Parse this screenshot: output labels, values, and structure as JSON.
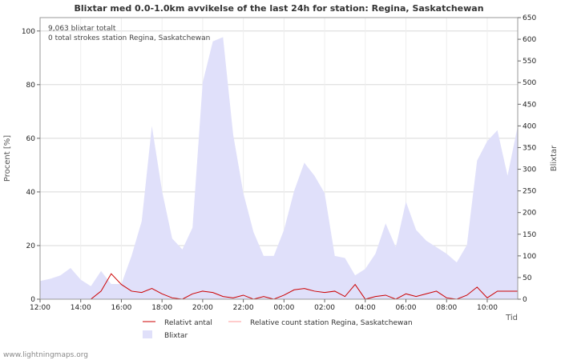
{
  "chart_data": {
    "type": "area",
    "title": "Blixtar med 0.0-1.0km avvikelse of the last 24h for station: Regina, Saskatchewan",
    "ylabel_left": "Procent   [%]",
    "ylabel_right": "Blixtar",
    "xlabel": "Tid",
    "ylim_left": [
      0,
      105
    ],
    "ylim_right": [
      0,
      650
    ],
    "left_ticks": [
      0,
      20,
      40,
      60,
      80,
      100
    ],
    "right_ticks": [
      0,
      50,
      100,
      150,
      200,
      250,
      300,
      350,
      400,
      450,
      500,
      550,
      600,
      650
    ],
    "x_tick_labels": [
      "12:00",
      "14:00",
      "16:00",
      "18:00",
      "20:00",
      "22:00",
      "00:00",
      "02:00",
      "04:00",
      "06:00",
      "08:00",
      "10:00"
    ],
    "x_tick_hours": [
      0,
      2,
      4,
      6,
      8,
      10,
      12,
      14,
      16,
      18,
      20,
      22
    ],
    "x_range_hours": [
      0,
      23.5
    ],
    "grid": true,
    "annotations": [
      "9,063 blixtar totalt",
      "0 total strokes station Regina, Saskatchewan"
    ],
    "legend": {
      "relative": "Relativt antal",
      "relative_station": "Relative count station Regina, Saskatchewan",
      "blixtar": "Blixtar"
    },
    "series": [
      {
        "name": "Blixtar",
        "axis": "right",
        "color": "#e0e0fa",
        "x": [
          0,
          0.5,
          1,
          1.5,
          2,
          2.5,
          3,
          3.5,
          4,
          4.5,
          5,
          5.5,
          6,
          6.5,
          7,
          7.5,
          8,
          8.5,
          9,
          9.5,
          10,
          10.5,
          11,
          11.5,
          12,
          12.5,
          13,
          13.5,
          14,
          14.5,
          15,
          15.5,
          16,
          16.5,
          17,
          17.5,
          18,
          18.5,
          19,
          19.5,
          20,
          20.5,
          21,
          21.5,
          22,
          22.5,
          23,
          23.5
        ],
        "values": [
          42,
          47,
          55,
          72,
          45,
          30,
          65,
          35,
          35,
          100,
          180,
          400,
          250,
          140,
          115,
          165,
          500,
          595,
          605,
          380,
          245,
          155,
          100,
          100,
          160,
          250,
          315,
          285,
          245,
          100,
          95,
          55,
          70,
          105,
          175,
          120,
          225,
          160,
          135,
          120,
          105,
          85,
          125,
          320,
          365,
          390,
          285,
          400
        ]
      },
      {
        "name": "Relativt antal",
        "axis": "left",
        "color": "#cc0000",
        "x": [
          0,
          0.5,
          1,
          1.5,
          2,
          2.5,
          3,
          3.5,
          4,
          4.5,
          5,
          5.5,
          6,
          6.5,
          7,
          7.5,
          8,
          8.5,
          9,
          9.5,
          10,
          10.5,
          11,
          11.5,
          12,
          12.5,
          13,
          13.5,
          14,
          14.5,
          15,
          15.5,
          16,
          16.5,
          17,
          17.5,
          18,
          18.5,
          19,
          19.5,
          20,
          20.5,
          21,
          21.5,
          22,
          22.5,
          23,
          23.5
        ],
        "values": [
          0,
          0,
          0,
          0,
          0,
          0,
          3,
          9.5,
          5.5,
          3,
          2.5,
          4,
          2,
          0.5,
          0,
          2,
          3,
          2.5,
          1,
          0.5,
          1.5,
          0,
          1,
          0,
          1.5,
          3.5,
          4,
          3,
          2.5,
          3,
          1,
          5.5,
          0,
          1,
          1.5,
          0,
          2,
          1,
          2,
          3,
          0.5,
          0,
          1.5,
          4.5,
          0.5,
          3,
          3,
          3
        ]
      },
      {
        "name": "Relative count station Regina, Saskatchewan",
        "axis": "left",
        "color": "#ff9999",
        "x": [
          0,
          23.5
        ],
        "values": [
          0,
          0
        ]
      }
    ]
  },
  "credit": "www.lightningmaps.org"
}
